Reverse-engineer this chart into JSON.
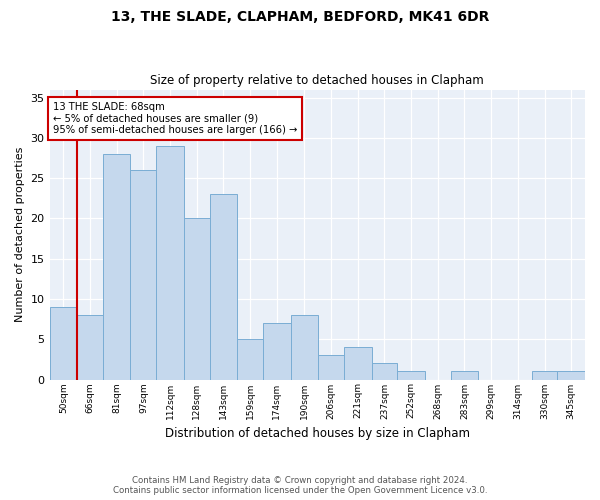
{
  "title1": "13, THE SLADE, CLAPHAM, BEDFORD, MK41 6DR",
  "title2": "Size of property relative to detached houses in Clapham",
  "xlabel": "Distribution of detached houses by size in Clapham",
  "ylabel": "Number of detached properties",
  "footer1": "Contains HM Land Registry data © Crown copyright and database right 2024.",
  "footer2": "Contains public sector information licensed under the Open Government Licence v3.0.",
  "bar_color": "#c5d8ed",
  "bar_edge_color": "#7aadd4",
  "bg_color": "#eaf0f8",
  "annotation_box_color": "#ffffff",
  "annotation_border_color": "#cc0000",
  "vline_color": "#cc0000",
  "vline_x": 66,
  "annotation_text1": "13 THE SLADE: 68sqm",
  "annotation_text2": "← 5% of detached houses are smaller (9)",
  "annotation_text3": "95% of semi-detached houses are larger (166) →",
  "bins": [
    50,
    66,
    81,
    97,
    112,
    128,
    143,
    159,
    174,
    190,
    206,
    221,
    237,
    252,
    268,
    283,
    299,
    314,
    330,
    345,
    361
  ],
  "counts": [
    9,
    8,
    28,
    26,
    29,
    20,
    23,
    5,
    7,
    8,
    3,
    4,
    2,
    1,
    0,
    1,
    0,
    0,
    1,
    1
  ],
  "ylim": [
    0,
    36
  ],
  "yticks": [
    0,
    5,
    10,
    15,
    20,
    25,
    30,
    35
  ]
}
